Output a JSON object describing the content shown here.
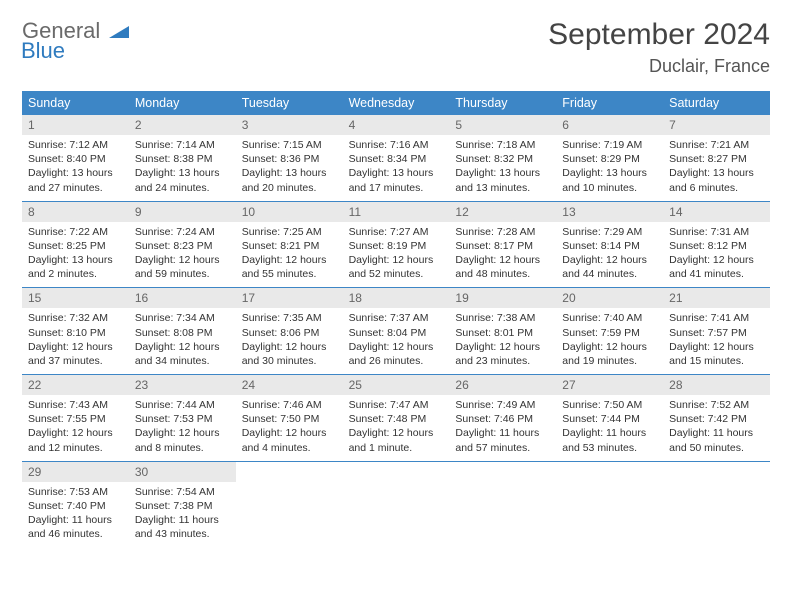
{
  "logo": {
    "part1": "General",
    "part2": "Blue"
  },
  "title": "September 2024",
  "location": "Duclair, France",
  "colors": {
    "header_bg": "#3d86c6",
    "header_text": "#ffffff",
    "daynum_bg": "#e9e9e9",
    "daynum_text": "#666666",
    "body_text": "#333333",
    "rule": "#3d86c6",
    "logo_gray": "#6a6a6a",
    "logo_blue": "#2f7bbf",
    "background": "#ffffff"
  },
  "layout": {
    "columns": 7,
    "label_fontsize": 12.5,
    "daynum_fontsize": 12,
    "body_fontsize": 10.5,
    "title_fontsize": 30,
    "location_fontsize": 18
  },
  "weekdays": [
    "Sunday",
    "Monday",
    "Tuesday",
    "Wednesday",
    "Thursday",
    "Friday",
    "Saturday"
  ],
  "weeks": [
    [
      {
        "n": "1",
        "sunrise": "Sunrise: 7:12 AM",
        "sunset": "Sunset: 8:40 PM",
        "day1": "Daylight: 13 hours",
        "day2": "and 27 minutes."
      },
      {
        "n": "2",
        "sunrise": "Sunrise: 7:14 AM",
        "sunset": "Sunset: 8:38 PM",
        "day1": "Daylight: 13 hours",
        "day2": "and 24 minutes."
      },
      {
        "n": "3",
        "sunrise": "Sunrise: 7:15 AM",
        "sunset": "Sunset: 8:36 PM",
        "day1": "Daylight: 13 hours",
        "day2": "and 20 minutes."
      },
      {
        "n": "4",
        "sunrise": "Sunrise: 7:16 AM",
        "sunset": "Sunset: 8:34 PM",
        "day1": "Daylight: 13 hours",
        "day2": "and 17 minutes."
      },
      {
        "n": "5",
        "sunrise": "Sunrise: 7:18 AM",
        "sunset": "Sunset: 8:32 PM",
        "day1": "Daylight: 13 hours",
        "day2": "and 13 minutes."
      },
      {
        "n": "6",
        "sunrise": "Sunrise: 7:19 AM",
        "sunset": "Sunset: 8:29 PM",
        "day1": "Daylight: 13 hours",
        "day2": "and 10 minutes."
      },
      {
        "n": "7",
        "sunrise": "Sunrise: 7:21 AM",
        "sunset": "Sunset: 8:27 PM",
        "day1": "Daylight: 13 hours",
        "day2": "and 6 minutes."
      }
    ],
    [
      {
        "n": "8",
        "sunrise": "Sunrise: 7:22 AM",
        "sunset": "Sunset: 8:25 PM",
        "day1": "Daylight: 13 hours",
        "day2": "and 2 minutes."
      },
      {
        "n": "9",
        "sunrise": "Sunrise: 7:24 AM",
        "sunset": "Sunset: 8:23 PM",
        "day1": "Daylight: 12 hours",
        "day2": "and 59 minutes."
      },
      {
        "n": "10",
        "sunrise": "Sunrise: 7:25 AM",
        "sunset": "Sunset: 8:21 PM",
        "day1": "Daylight: 12 hours",
        "day2": "and 55 minutes."
      },
      {
        "n": "11",
        "sunrise": "Sunrise: 7:27 AM",
        "sunset": "Sunset: 8:19 PM",
        "day1": "Daylight: 12 hours",
        "day2": "and 52 minutes."
      },
      {
        "n": "12",
        "sunrise": "Sunrise: 7:28 AM",
        "sunset": "Sunset: 8:17 PM",
        "day1": "Daylight: 12 hours",
        "day2": "and 48 minutes."
      },
      {
        "n": "13",
        "sunrise": "Sunrise: 7:29 AM",
        "sunset": "Sunset: 8:14 PM",
        "day1": "Daylight: 12 hours",
        "day2": "and 44 minutes."
      },
      {
        "n": "14",
        "sunrise": "Sunrise: 7:31 AM",
        "sunset": "Sunset: 8:12 PM",
        "day1": "Daylight: 12 hours",
        "day2": "and 41 minutes."
      }
    ],
    [
      {
        "n": "15",
        "sunrise": "Sunrise: 7:32 AM",
        "sunset": "Sunset: 8:10 PM",
        "day1": "Daylight: 12 hours",
        "day2": "and 37 minutes."
      },
      {
        "n": "16",
        "sunrise": "Sunrise: 7:34 AM",
        "sunset": "Sunset: 8:08 PM",
        "day1": "Daylight: 12 hours",
        "day2": "and 34 minutes."
      },
      {
        "n": "17",
        "sunrise": "Sunrise: 7:35 AM",
        "sunset": "Sunset: 8:06 PM",
        "day1": "Daylight: 12 hours",
        "day2": "and 30 minutes."
      },
      {
        "n": "18",
        "sunrise": "Sunrise: 7:37 AM",
        "sunset": "Sunset: 8:04 PM",
        "day1": "Daylight: 12 hours",
        "day2": "and 26 minutes."
      },
      {
        "n": "19",
        "sunrise": "Sunrise: 7:38 AM",
        "sunset": "Sunset: 8:01 PM",
        "day1": "Daylight: 12 hours",
        "day2": "and 23 minutes."
      },
      {
        "n": "20",
        "sunrise": "Sunrise: 7:40 AM",
        "sunset": "Sunset: 7:59 PM",
        "day1": "Daylight: 12 hours",
        "day2": "and 19 minutes."
      },
      {
        "n": "21",
        "sunrise": "Sunrise: 7:41 AM",
        "sunset": "Sunset: 7:57 PM",
        "day1": "Daylight: 12 hours",
        "day2": "and 15 minutes."
      }
    ],
    [
      {
        "n": "22",
        "sunrise": "Sunrise: 7:43 AM",
        "sunset": "Sunset: 7:55 PM",
        "day1": "Daylight: 12 hours",
        "day2": "and 12 minutes."
      },
      {
        "n": "23",
        "sunrise": "Sunrise: 7:44 AM",
        "sunset": "Sunset: 7:53 PM",
        "day1": "Daylight: 12 hours",
        "day2": "and 8 minutes."
      },
      {
        "n": "24",
        "sunrise": "Sunrise: 7:46 AM",
        "sunset": "Sunset: 7:50 PM",
        "day1": "Daylight: 12 hours",
        "day2": "and 4 minutes."
      },
      {
        "n": "25",
        "sunrise": "Sunrise: 7:47 AM",
        "sunset": "Sunset: 7:48 PM",
        "day1": "Daylight: 12 hours",
        "day2": "and 1 minute."
      },
      {
        "n": "26",
        "sunrise": "Sunrise: 7:49 AM",
        "sunset": "Sunset: 7:46 PM",
        "day1": "Daylight: 11 hours",
        "day2": "and 57 minutes."
      },
      {
        "n": "27",
        "sunrise": "Sunrise: 7:50 AM",
        "sunset": "Sunset: 7:44 PM",
        "day1": "Daylight: 11 hours",
        "day2": "and 53 minutes."
      },
      {
        "n": "28",
        "sunrise": "Sunrise: 7:52 AM",
        "sunset": "Sunset: 7:42 PM",
        "day1": "Daylight: 11 hours",
        "day2": "and 50 minutes."
      }
    ],
    [
      {
        "n": "29",
        "sunrise": "Sunrise: 7:53 AM",
        "sunset": "Sunset: 7:40 PM",
        "day1": "Daylight: 11 hours",
        "day2": "and 46 minutes."
      },
      {
        "n": "30",
        "sunrise": "Sunrise: 7:54 AM",
        "sunset": "Sunset: 7:38 PM",
        "day1": "Daylight: 11 hours",
        "day2": "and 43 minutes."
      },
      null,
      null,
      null,
      null,
      null
    ]
  ]
}
